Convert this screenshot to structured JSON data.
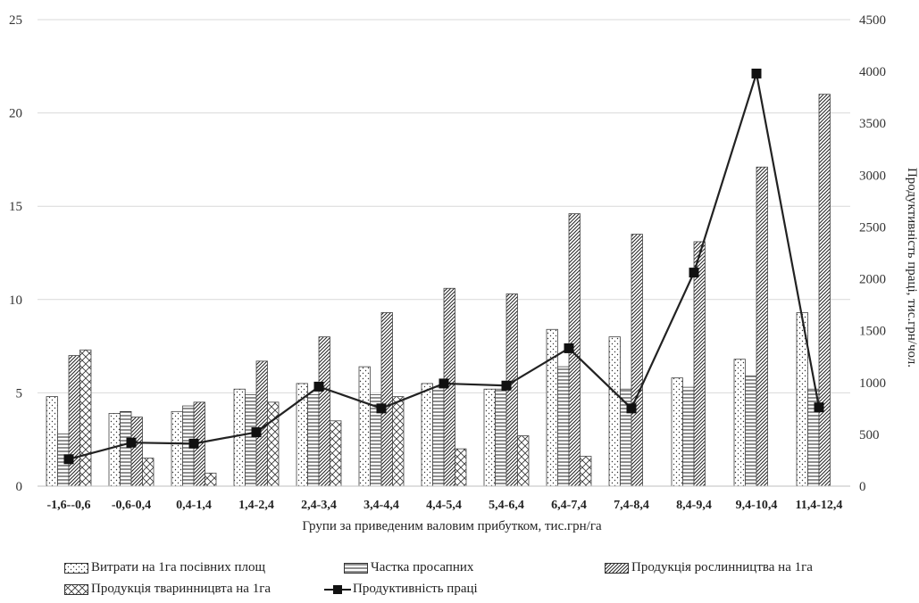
{
  "chart_data": {
    "type": "bar",
    "title": "",
    "xlabel": "Групи за приведеним валовим прибутком, тис.грн/га",
    "ylabel_left": "",
    "ylabel_right": "Продуктивність праці, тис.грн/чол.",
    "ylim_left": [
      0,
      25
    ],
    "ylim_right": [
      0,
      4500
    ],
    "yticks_left": [
      "0",
      "5",
      "10",
      "15",
      "20",
      "25"
    ],
    "yticks_right": [
      "0",
      "500",
      "1000",
      "1500",
      "2000",
      "2500",
      "3000",
      "3500",
      "4000",
      "4500"
    ],
    "grid": "horizontal",
    "legend_position": "bottom",
    "categories": [
      "-1,6--0,6",
      "-0,6-0,4",
      "0,4-1,4",
      "1,4-2,4",
      "2,4-3,4",
      "3,4-4,4",
      "4,4-5,4",
      "5,4-6,4",
      "6,4-7,4",
      "7,4-8,4",
      "8,4-9,4",
      "9,4-10,4",
      "11,4-12,4"
    ],
    "series": [
      {
        "name": "Витрати на 1га посівних площ",
        "kind": "bar",
        "axis": "left",
        "pattern": "dots",
        "values": [
          4.8,
          3.9,
          4.0,
          5.2,
          5.5,
          6.4,
          5.5,
          5.2,
          8.4,
          8.0,
          5.8,
          6.8,
          9.3
        ]
      },
      {
        "name": "Частка просапних",
        "kind": "bar",
        "axis": "left",
        "pattern": "hlines",
        "values": [
          2.8,
          4.0,
          4.3,
          4.9,
          4.9,
          4.9,
          5.3,
          5.2,
          6.4,
          5.2,
          5.3,
          5.9,
          5.2
        ]
      },
      {
        "name": "Продукція рослинництва на 1га",
        "kind": "bar",
        "axis": "left",
        "pattern": "diagonal",
        "values": [
          7.0,
          3.7,
          4.5,
          6.7,
          8.0,
          9.3,
          10.6,
          10.3,
          14.6,
          13.5,
          13.1,
          17.1,
          21.0
        ]
      },
      {
        "name": "Продукція тваринницвта на 1га",
        "kind": "bar",
        "axis": "left",
        "pattern": "crosshatch",
        "values": [
          7.3,
          1.5,
          0.7,
          4.5,
          3.5,
          4.8,
          2.0,
          2.7,
          1.6,
          null,
          null,
          null,
          null
        ]
      },
      {
        "name": "Продуктивність праці",
        "kind": "line",
        "axis": "right",
        "marker": "square",
        "values": [
          260,
          420,
          410,
          520,
          960,
          750,
          990,
          970,
          1330,
          750,
          2060,
          3980,
          760
        ]
      }
    ]
  }
}
